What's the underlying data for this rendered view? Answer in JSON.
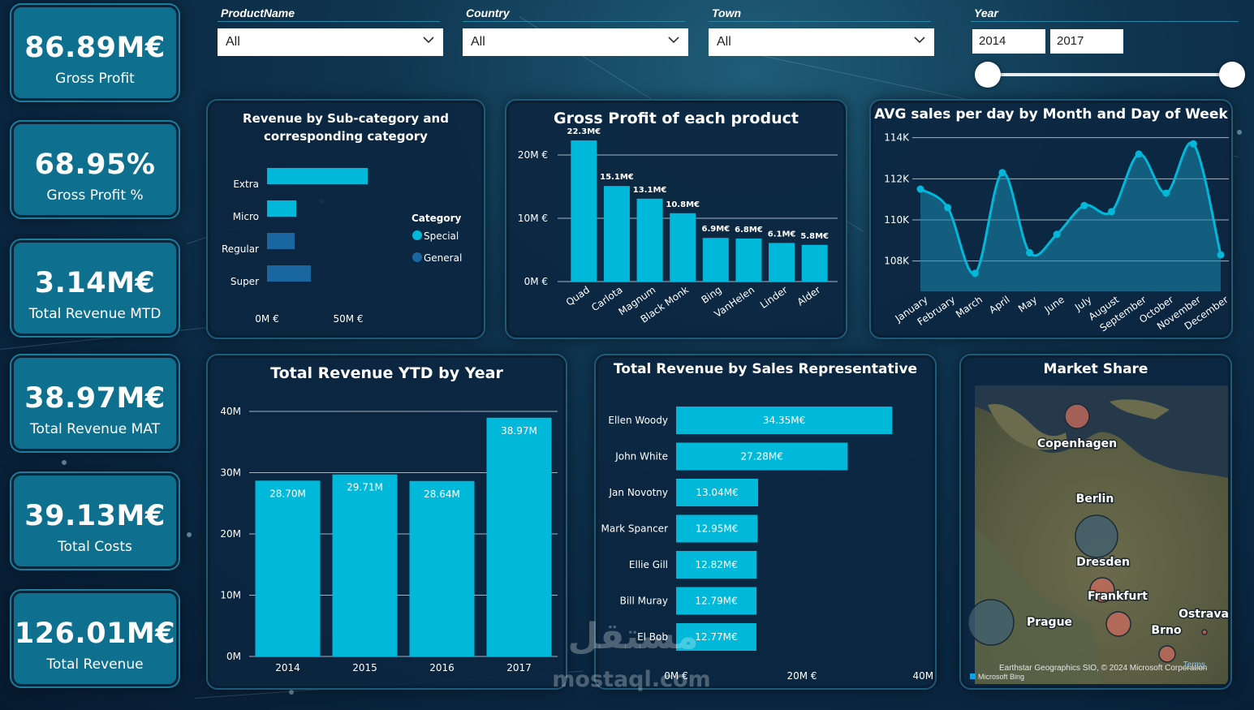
{
  "kpis": [
    {
      "value": "86.89M€",
      "label": "Gross Profit"
    },
    {
      "value": "68.95%",
      "label": "Gross Profit %"
    },
    {
      "value": "3.14M€",
      "label": "Total Revenue MTD"
    },
    {
      "value": "38.97M€",
      "label": "Total Revenue MAT"
    },
    {
      "value": "39.13M€",
      "label": "Total Costs"
    },
    {
      "value": "126.01M€",
      "label": "Total Revenue"
    }
  ],
  "filters": {
    "product": {
      "title": "ProductName",
      "value": "All"
    },
    "country": {
      "title": "Country",
      "value": "All"
    },
    "town": {
      "title": "Town",
      "value": "All"
    },
    "year": {
      "title": "Year",
      "from": "2014",
      "to": "2017"
    }
  },
  "colors": {
    "accent": "#00b8d9",
    "dark_bar": "#1a66a0",
    "kpi_bg": "#0e6f8f"
  },
  "chart_data": [
    {
      "id": "subcat",
      "type": "bar",
      "title": "Revenue by Sub-category and corresponding category",
      "orientation": "horizontal",
      "categories": [
        "Extra",
        "Micro",
        "Regular",
        "Super"
      ],
      "values": [
        62,
        18,
        17,
        27
      ],
      "category_of": [
        "Special",
        "Special",
        "General",
        "General"
      ],
      "legend_title": "Category",
      "legend": [
        "Special",
        "General"
      ],
      "xticks": [
        "0M €",
        "50M €"
      ],
      "xlim": [
        0,
        100
      ]
    },
    {
      "id": "grossprofit",
      "type": "bar",
      "title": "Gross Profit of each product",
      "categories": [
        "Quad",
        "Carlota",
        "Magnum",
        "Black Monk",
        "Bing",
        "VanHelen",
        "Linder",
        "Alder"
      ],
      "values": [
        22.3,
        15.1,
        13.1,
        10.8,
        6.9,
        6.8,
        6.1,
        5.8
      ],
      "labels": [
        "22.3M€",
        "15.1M€",
        "13.1M€",
        "10.8M€",
        "6.9M€",
        "6.8M€",
        "6.1M€",
        "5.8M€"
      ],
      "yticks": [
        "0M €",
        "10M €",
        "20M €"
      ],
      "ylim": [
        0,
        25
      ]
    },
    {
      "id": "avgsales",
      "type": "area",
      "title": "AVG sales per day by Month and Day of Week",
      "categories": [
        "January",
        "February",
        "March",
        "April",
        "May",
        "June",
        "July",
        "August",
        "September",
        "October",
        "November",
        "December"
      ],
      "values": [
        111.5,
        110.6,
        107.4,
        112.3,
        108.4,
        109.3,
        110.7,
        110.4,
        113.2,
        111.3,
        113.7,
        108.3
      ],
      "yticks": [
        "108K",
        "110K",
        "112K",
        "114K"
      ],
      "ylim": [
        107,
        114.5
      ]
    },
    {
      "id": "ytd",
      "type": "bar",
      "title": "Total Revenue YTD by Year",
      "categories": [
        "2014",
        "2015",
        "2016",
        "2017"
      ],
      "values": [
        28.7,
        29.71,
        28.64,
        38.97
      ],
      "labels": [
        "28.70M",
        "29.71M",
        "28.64M",
        "38.97M"
      ],
      "yticks": [
        "0M",
        "10M",
        "20M",
        "30M",
        "40M"
      ],
      "ylim": [
        0,
        40
      ]
    },
    {
      "id": "salesrep",
      "type": "bar",
      "orientation": "horizontal",
      "title": "Total Revenue by Sales Representative",
      "categories": [
        "Ellen Woody",
        "John White",
        "Jan Novotny",
        "Mark Spancer",
        "Ellie Gill",
        "Bill Muray",
        "El Bob"
      ],
      "values": [
        34.35,
        27.28,
        13.04,
        12.95,
        12.82,
        12.79,
        12.77
      ],
      "labels": [
        "34.35M€",
        "27.28M€",
        "13.04M€",
        "12.95M€",
        "12.82M€",
        "12.79M€",
        "12.77M€"
      ],
      "xticks": [
        "0M €",
        "20M €",
        "40M €"
      ],
      "xlim": [
        0,
        40
      ]
    }
  ],
  "map": {
    "title": "Market Share",
    "cities": [
      "Copenhagen",
      "Berlin",
      "Dresden",
      "Prague",
      "Frankfurt",
      "Brno",
      "Ostrava"
    ],
    "attribution": "Earthstar Geographics SIO, © 2024 Microsoft Corporation",
    "terms": "Terms",
    "bing": "Microsoft Bing"
  },
  "watermark": {
    "arabic": "مستقل",
    "latin": "mostaql.com"
  }
}
